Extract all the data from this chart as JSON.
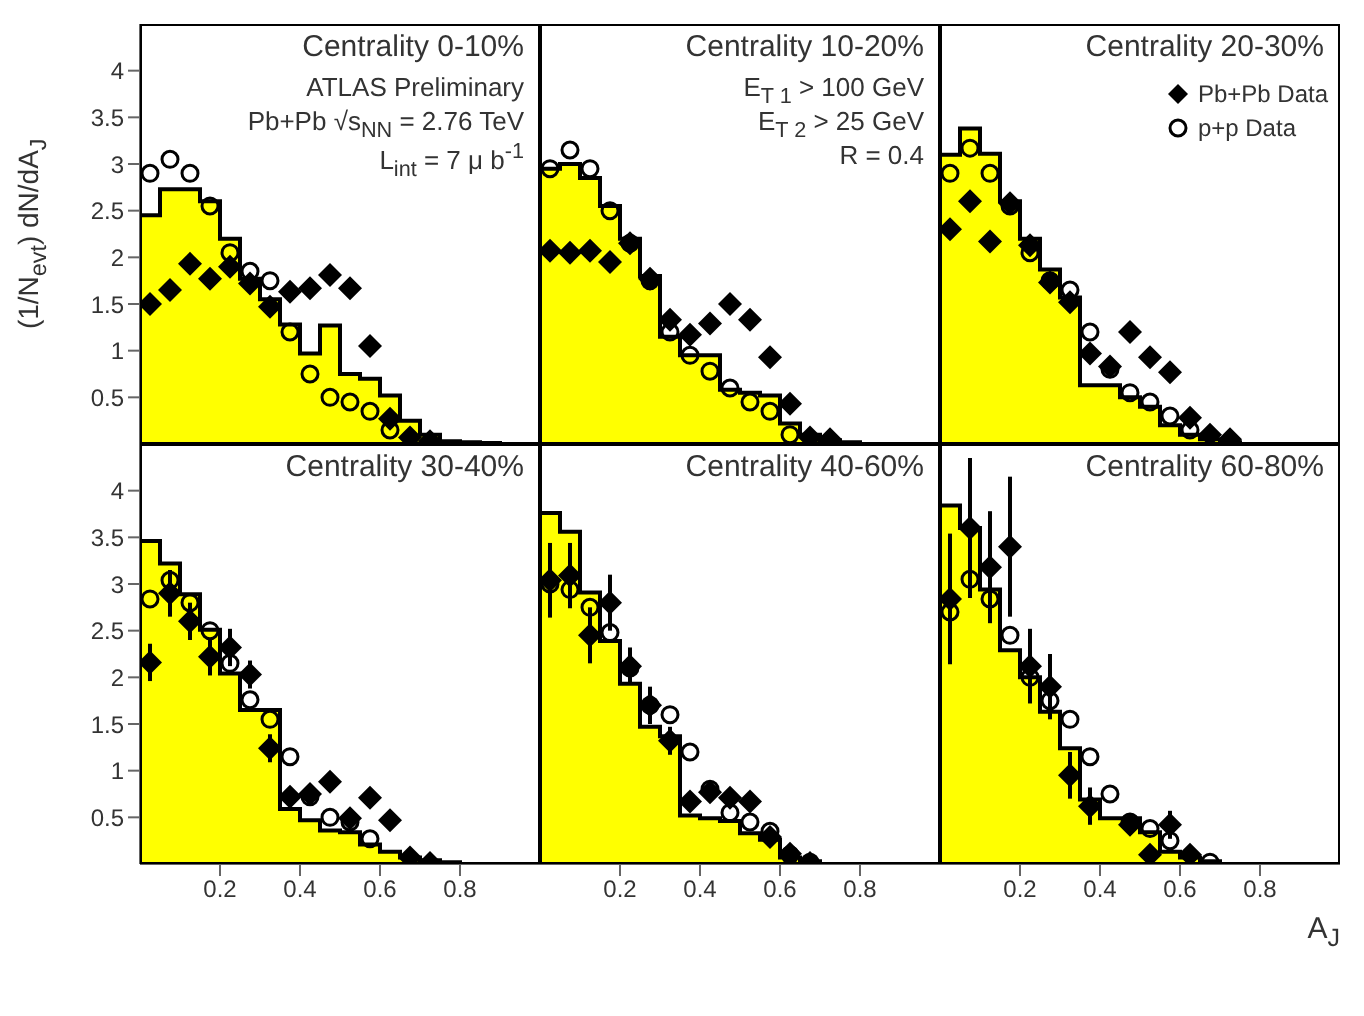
{
  "chart_data": [
    {
      "type": "histogram",
      "title": "Centrality  0-10%",
      "ylabel": "(1/N$_{evt}$) dN/dA$_{J}$",
      "annotations": [
        "ATLAS Preliminary",
        "Pb+Pb √s$_{NN}$ = 2.76 TeV",
        "L$_{int}$ = 7 μ b$^{-1}$"
      ],
      "xlim": [
        0,
        1
      ],
      "ylim": [
        0,
        4.5
      ],
      "xticks": [
        0.2,
        0.4,
        0.6,
        0.8
      ],
      "yticks": [
        0.5,
        1,
        1.5,
        2,
        2.5,
        3,
        3.5,
        4
      ],
      "tick_labels": "y",
      "grid": false,
      "bins": [
        0,
        0.05,
        0.1,
        0.15,
        0.2,
        0.25,
        0.3,
        0.35,
        0.4,
        0.45,
        0.5,
        0.55,
        0.6,
        0.65,
        0.7,
        0.75,
        0.8,
        0.85,
        0.9,
        0.95,
        1
      ],
      "series": [
        {
          "type": "histogram",
          "color": "#ffff00",
          "values": [
            2.45,
            2.73,
            2.73,
            2.6,
            2.2,
            1.77,
            1.55,
            1.28,
            0.97,
            1.27,
            0.75,
            0.7,
            0.52,
            0.25,
            0.1,
            0.03,
            0.02,
            0.01,
            0,
            0
          ]
        },
        {
          "type": "scatter",
          "color": "#000000",
          "marker": "diamond",
          "x": [
            0.025,
            0.075,
            0.125,
            0.175,
            0.225,
            0.275,
            0.325,
            0.375,
            0.425,
            0.475,
            0.525,
            0.575,
            0.625,
            0.675,
            0.725
          ],
          "values": [
            1.5,
            1.65,
            1.93,
            1.77,
            1.9,
            1.72,
            1.47,
            1.63,
            1.67,
            1.81,
            1.67,
            1.05,
            0.27,
            0.07,
            0.03
          ]
        },
        {
          "type": "scatter",
          "color": "#000000",
          "marker": "circle",
          "x": [
            0.025,
            0.075,
            0.125,
            0.175,
            0.225,
            0.275,
            0.325,
            0.375,
            0.425,
            0.475,
            0.525,
            0.575,
            0.625
          ],
          "values": [
            2.9,
            3.05,
            2.9,
            2.55,
            2.05,
            1.85,
            1.75,
            1.2,
            0.75,
            0.5,
            0.45,
            0.35,
            0.15
          ]
        }
      ]
    },
    {
      "type": "histogram",
      "title": "Centrality 10-20%",
      "annotations": [
        "E$_{T 1}$ > 100 GeV",
        "E$_{T 2}$ > 25 GeV",
        "R = 0.4"
      ],
      "xlim": [
        0,
        1
      ],
      "ylim": [
        0,
        4.5
      ],
      "xticks": [
        0.2,
        0.4,
        0.6,
        0.8
      ],
      "yticks": [
        0.5,
        1,
        1.5,
        2,
        2.5,
        3,
        3.5,
        4
      ],
      "tick_labels": false,
      "grid": false,
      "bins": [
        0,
        0.05,
        0.1,
        0.15,
        0.2,
        0.25,
        0.3,
        0.35,
        0.4,
        0.45,
        0.5,
        0.55,
        0.6,
        0.65,
        0.7,
        0.75,
        0.8,
        0.85,
        0.9,
        0.95,
        1
      ],
      "series": [
        {
          "type": "histogram",
          "color": "#ffff00",
          "values": [
            2.95,
            3.0,
            2.85,
            2.55,
            2.2,
            1.8,
            1.15,
            0.95,
            0.95,
            0.58,
            0.55,
            0.52,
            0.22,
            0.1,
            0.04,
            0.02,
            0,
            0,
            0,
            0
          ]
        },
        {
          "type": "scatter",
          "color": "#000000",
          "marker": "diamond",
          "x": [
            0.025,
            0.075,
            0.125,
            0.175,
            0.225,
            0.275,
            0.325,
            0.375,
            0.425,
            0.475,
            0.525,
            0.575,
            0.625,
            0.675,
            0.725
          ],
          "values": [
            2.07,
            2.05,
            2.07,
            1.95,
            2.15,
            1.77,
            1.33,
            1.17,
            1.29,
            1.5,
            1.33,
            0.93,
            0.43,
            0.07,
            0.05
          ]
        },
        {
          "type": "scatter",
          "color": "#000000",
          "marker": "circle",
          "x": [
            0.025,
            0.075,
            0.125,
            0.175,
            0.225,
            0.275,
            0.325,
            0.375,
            0.425,
            0.475,
            0.525,
            0.575,
            0.625
          ],
          "values": [
            2.95,
            3.15,
            2.95,
            2.5,
            2.15,
            1.75,
            1.2,
            0.95,
            0.78,
            0.6,
            0.45,
            0.35,
            0.1
          ]
        }
      ]
    },
    {
      "type": "histogram",
      "title": "Centrality 20-30%",
      "legend": "top right",
      "xlim": [
        0,
        1
      ],
      "ylim": [
        0,
        4.5
      ],
      "xticks": [
        0.2,
        0.4,
        0.6,
        0.8
      ],
      "yticks": [
        0.5,
        1,
        1.5,
        2,
        2.5,
        3,
        3.5,
        4
      ],
      "tick_labels": false,
      "grid": false,
      "bins": [
        0,
        0.05,
        0.1,
        0.15,
        0.2,
        0.25,
        0.3,
        0.35,
        0.4,
        0.45,
        0.5,
        0.55,
        0.6,
        0.65,
        0.7,
        0.75,
        0.8,
        0.85,
        0.9,
        0.95,
        1
      ],
      "series": [
        {
          "type": "histogram",
          "color": "#ffff00",
          "values": [
            3.1,
            3.38,
            3.11,
            2.6,
            2.2,
            1.87,
            1.57,
            0.63,
            0.63,
            0.5,
            0.4,
            0.2,
            0.1,
            0.05,
            0.02,
            0,
            0,
            0,
            0,
            0
          ]
        },
        {
          "type": "scatter",
          "name": "Pb+Pb Data",
          "color": "#000000",
          "marker": "diamond",
          "x": [
            0.025,
            0.075,
            0.125,
            0.175,
            0.225,
            0.275,
            0.325,
            0.375,
            0.425,
            0.475,
            0.525,
            0.575,
            0.625,
            0.675,
            0.725
          ],
          "values": [
            2.3,
            2.6,
            2.17,
            2.58,
            2.13,
            1.73,
            1.52,
            0.97,
            0.83,
            1.2,
            0.93,
            0.77,
            0.28,
            0.1,
            0.05
          ]
        },
        {
          "type": "scatter",
          "name": "p+p Data",
          "color": "#000000",
          "marker": "circle",
          "x": [
            0.025,
            0.075,
            0.125,
            0.175,
            0.225,
            0.275,
            0.325,
            0.375,
            0.425,
            0.475,
            0.525,
            0.575,
            0.625
          ],
          "values": [
            2.9,
            3.17,
            2.9,
            2.55,
            2.05,
            1.75,
            1.65,
            1.2,
            0.8,
            0.55,
            0.45,
            0.3,
            0.15
          ]
        }
      ]
    },
    {
      "type": "histogram",
      "title": "Centrality 30-40%",
      "xlim": [
        0,
        1
      ],
      "ylim": [
        0,
        4.5
      ],
      "xticks": [
        0.2,
        0.4,
        0.6,
        0.8
      ],
      "yticks": [
        0.5,
        1,
        1.5,
        2,
        2.5,
        3,
        3.5,
        4
      ],
      "grid": false,
      "bins": [
        0,
        0.05,
        0.1,
        0.15,
        0.2,
        0.25,
        0.3,
        0.35,
        0.4,
        0.45,
        0.5,
        0.55,
        0.6,
        0.65,
        0.7,
        0.75,
        0.8,
        0.85,
        0.9,
        0.95,
        1
      ],
      "series": [
        {
          "type": "histogram",
          "color": "#ffff00",
          "values": [
            3.46,
            3.22,
            2.89,
            2.51,
            2.04,
            1.65,
            1.65,
            0.59,
            0.47,
            0.36,
            0.34,
            0.21,
            0.13,
            0.07,
            0.04,
            0.02,
            0,
            0,
            0,
            0
          ]
        },
        {
          "type": "scatter",
          "color": "#000000",
          "marker": "diamond",
          "x": [
            0.025,
            0.075,
            0.125,
            0.175,
            0.225,
            0.275,
            0.325,
            0.375,
            0.425,
            0.475,
            0.525,
            0.575,
            0.625,
            0.675,
            0.725
          ],
          "values": [
            2.16,
            2.9,
            2.6,
            2.22,
            2.32,
            2.03,
            1.24,
            0.72,
            0.75,
            0.88,
            0.49,
            0.71,
            0.47,
            0.07,
            0.01
          ],
          "errors": [
            0.2,
            0.25,
            0.2,
            0.2,
            0.2,
            0.15,
            0.15,
            0.1,
            0.08,
            0.1,
            0.07,
            0.1,
            0.07,
            0.03,
            0.01
          ]
        },
        {
          "type": "scatter",
          "color": "#000000",
          "marker": "circle",
          "x": [
            0.025,
            0.075,
            0.125,
            0.175,
            0.225,
            0.275,
            0.325,
            0.375,
            0.425,
            0.475,
            0.525,
            0.575
          ],
          "values": [
            2.84,
            3.04,
            2.8,
            2.5,
            2.15,
            1.76,
            1.55,
            1.15,
            0.72,
            0.5,
            0.45,
            0.27
          ]
        }
      ]
    },
    {
      "type": "histogram",
      "title": "Centrality 40-60%",
      "xlim": [
        0,
        1
      ],
      "ylim": [
        0,
        4.5
      ],
      "xticks": [
        0.2,
        0.4,
        0.6,
        0.8
      ],
      "yticks": [
        0.5,
        1,
        1.5,
        2,
        2.5,
        3,
        3.5,
        4
      ],
      "tick_labels": "x",
      "grid": false,
      "bins": [
        0,
        0.05,
        0.1,
        0.15,
        0.2,
        0.25,
        0.3,
        0.35,
        0.4,
        0.45,
        0.5,
        0.55,
        0.6,
        0.65,
        0.7,
        0.75,
        0.8,
        0.85,
        0.9,
        0.95,
        1
      ],
      "series": [
        {
          "type": "histogram",
          "color": "#ffff00",
          "values": [
            3.76,
            3.56,
            2.91,
            2.39,
            1.93,
            1.47,
            1.37,
            0.52,
            0.49,
            0.46,
            0.33,
            0.26,
            0.07,
            0.03,
            0,
            0,
            0,
            0,
            0,
            0
          ]
        },
        {
          "type": "scatter",
          "color": "#000000",
          "marker": "diamond",
          "x": [
            0.025,
            0.075,
            0.125,
            0.175,
            0.225,
            0.275,
            0.325,
            0.375,
            0.425,
            0.475,
            0.525,
            0.575,
            0.625,
            0.675
          ],
          "values": [
            3.04,
            3.09,
            2.45,
            2.8,
            2.12,
            1.7,
            1.32,
            0.67,
            0.77,
            0.71,
            0.67,
            0.29,
            0.11,
            0.01
          ],
          "errors": [
            0.4,
            0.35,
            0.3,
            0.3,
            0.2,
            0.2,
            0.15,
            0.1,
            0.1,
            0.1,
            0.1,
            0.06,
            0.04,
            0.01
          ]
        },
        {
          "type": "scatter",
          "color": "#000000",
          "marker": "circle",
          "x": [
            0.025,
            0.075,
            0.125,
            0.175,
            0.225,
            0.275,
            0.325,
            0.375,
            0.425,
            0.475,
            0.525,
            0.575,
            0.625,
            0.675
          ],
          "values": [
            3.0,
            2.94,
            2.75,
            2.48,
            2.1,
            1.7,
            1.6,
            1.2,
            0.8,
            0.55,
            0.45,
            0.35,
            0.1,
            0.02
          ]
        }
      ]
    },
    {
      "type": "histogram",
      "title": "Centrality 60-80%",
      "xlabel": "A$_{J}$",
      "xlim": [
        0,
        1
      ],
      "ylim": [
        0,
        4.5
      ],
      "xticks": [
        0.2,
        0.4,
        0.6,
        0.8
      ],
      "yticks": [
        0.5,
        1,
        1.5,
        2,
        2.5,
        3,
        3.5,
        4
      ],
      "tick_labels": "x",
      "grid": false,
      "bins": [
        0,
        0.05,
        0.1,
        0.15,
        0.2,
        0.25,
        0.3,
        0.35,
        0.4,
        0.45,
        0.5,
        0.55,
        0.6,
        0.65,
        0.7,
        0.75,
        0.8,
        0.85,
        0.9,
        0.95,
        1
      ],
      "series": [
        {
          "type": "histogram",
          "color": "#ffff00",
          "values": [
            3.84,
            3.6,
            2.94,
            2.29,
            2.0,
            1.63,
            1.24,
            0.69,
            0.49,
            0.49,
            0.34,
            0.13,
            0.07,
            0.03,
            0,
            0,
            0,
            0,
            0,
            0
          ]
        },
        {
          "type": "scatter",
          "color": "#000000",
          "marker": "diamond",
          "x": [
            0.025,
            0.075,
            0.125,
            0.175,
            0.225,
            0.275,
            0.325,
            0.375,
            0.425,
            0.475,
            0.525,
            0.575,
            0.625
          ],
          "values": [
            2.84,
            3.6,
            3.18,
            3.4,
            2.12,
            1.9,
            0.95,
            0.62,
            null,
            0.42,
            0.1,
            0.42,
            0.1
          ],
          "errors": [
            0.7,
            0.75,
            0.6,
            0.75,
            0.4,
            0.35,
            0.25,
            0.2,
            null,
            0.1,
            0.05,
            0.15,
            0.05
          ]
        },
        {
          "type": "scatter",
          "color": "#000000",
          "marker": "circle",
          "x": [
            0.025,
            0.075,
            0.125,
            0.175,
            0.225,
            0.275,
            0.325,
            0.375,
            0.425,
            0.475,
            0.525,
            0.575,
            0.675
          ],
          "values": [
            2.7,
            3.05,
            2.84,
            2.45,
            2.0,
            1.75,
            1.55,
            1.15,
            0.75,
            0.45,
            0.38,
            0.25,
            0.02
          ]
        }
      ]
    }
  ]
}
